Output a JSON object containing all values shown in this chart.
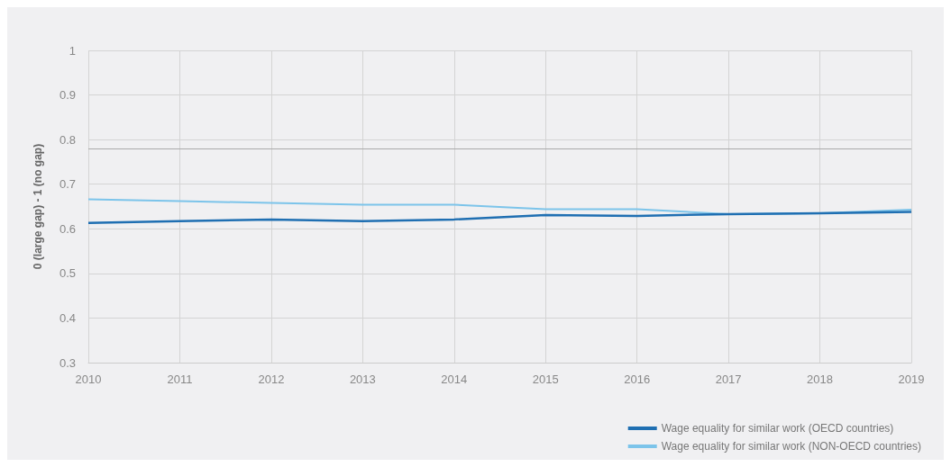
{
  "chart_data": {
    "type": "line",
    "ylabel": "0 (large gap) - 1 (no gap)",
    "categories": [
      "2010",
      "2011",
      "2012",
      "2013",
      "2014",
      "2015",
      "2016",
      "2017",
      "2018",
      "2019"
    ],
    "series": [
      {
        "name": "Wage equality for similar work (OECD countries)",
        "color": "#1f6fb2",
        "values": [
          0.613,
          0.617,
          0.621,
          0.617,
          0.621,
          0.631,
          0.629,
          0.633,
          0.635,
          0.638
        ]
      },
      {
        "name": "Wage equality for similar work (NON-OECD countries)",
        "color": "#7cc4ea",
        "values": [
          0.666,
          0.662,
          0.658,
          0.654,
          0.654,
          0.644,
          0.644,
          0.633,
          0.635,
          0.643
        ]
      }
    ],
    "ylim": [
      0.3,
      1
    ],
    "yticks": [
      0.3,
      0.4,
      0.5,
      0.6,
      0.7,
      0.8,
      0.9,
      1
    ],
    "ref_lines": [
      {
        "axis": "y",
        "value": 0.78,
        "label": null,
        "color": "#aaaaaa"
      }
    ],
    "grid": true,
    "legend": "bottom right",
    "marker": "none",
    "line_style": "solid"
  }
}
